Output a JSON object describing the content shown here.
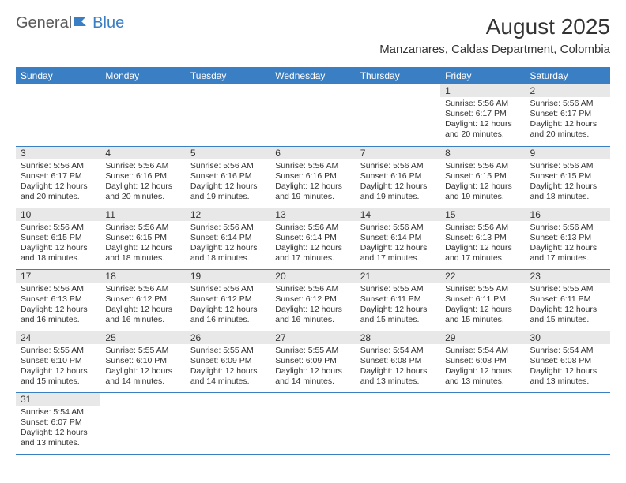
{
  "logo": {
    "text1": "General",
    "text2": "Blue"
  },
  "title": "August 2025",
  "location": "Manzanares, Caldas Department, Colombia",
  "colors": {
    "header_bg": "#3a7fc4",
    "header_text": "#ffffff",
    "daynum_bg": "#e8e8e8",
    "row_border": "#3a7fc4",
    "text": "#333333",
    "logo_blue": "#3a7fc4"
  },
  "fonts": {
    "title_size_pt": 21,
    "location_size_pt": 11,
    "header_size_pt": 9,
    "daynum_size_pt": 9,
    "body_size_pt": 8
  },
  "day_headers": [
    "Sunday",
    "Monday",
    "Tuesday",
    "Wednesday",
    "Thursday",
    "Friday",
    "Saturday"
  ],
  "first_day_col": 5,
  "days": [
    {
      "n": 1,
      "sunrise": "5:56 AM",
      "sunset": "6:17 PM",
      "daylight": "12 hours and 20 minutes."
    },
    {
      "n": 2,
      "sunrise": "5:56 AM",
      "sunset": "6:17 PM",
      "daylight": "12 hours and 20 minutes."
    },
    {
      "n": 3,
      "sunrise": "5:56 AM",
      "sunset": "6:17 PM",
      "daylight": "12 hours and 20 minutes."
    },
    {
      "n": 4,
      "sunrise": "5:56 AM",
      "sunset": "6:16 PM",
      "daylight": "12 hours and 20 minutes."
    },
    {
      "n": 5,
      "sunrise": "5:56 AM",
      "sunset": "6:16 PM",
      "daylight": "12 hours and 19 minutes."
    },
    {
      "n": 6,
      "sunrise": "5:56 AM",
      "sunset": "6:16 PM",
      "daylight": "12 hours and 19 minutes."
    },
    {
      "n": 7,
      "sunrise": "5:56 AM",
      "sunset": "6:16 PM",
      "daylight": "12 hours and 19 minutes."
    },
    {
      "n": 8,
      "sunrise": "5:56 AM",
      "sunset": "6:15 PM",
      "daylight": "12 hours and 19 minutes."
    },
    {
      "n": 9,
      "sunrise": "5:56 AM",
      "sunset": "6:15 PM",
      "daylight": "12 hours and 18 minutes."
    },
    {
      "n": 10,
      "sunrise": "5:56 AM",
      "sunset": "6:15 PM",
      "daylight": "12 hours and 18 minutes."
    },
    {
      "n": 11,
      "sunrise": "5:56 AM",
      "sunset": "6:15 PM",
      "daylight": "12 hours and 18 minutes."
    },
    {
      "n": 12,
      "sunrise": "5:56 AM",
      "sunset": "6:14 PM",
      "daylight": "12 hours and 18 minutes."
    },
    {
      "n": 13,
      "sunrise": "5:56 AM",
      "sunset": "6:14 PM",
      "daylight": "12 hours and 17 minutes."
    },
    {
      "n": 14,
      "sunrise": "5:56 AM",
      "sunset": "6:14 PM",
      "daylight": "12 hours and 17 minutes."
    },
    {
      "n": 15,
      "sunrise": "5:56 AM",
      "sunset": "6:13 PM",
      "daylight": "12 hours and 17 minutes."
    },
    {
      "n": 16,
      "sunrise": "5:56 AM",
      "sunset": "6:13 PM",
      "daylight": "12 hours and 17 minutes."
    },
    {
      "n": 17,
      "sunrise": "5:56 AM",
      "sunset": "6:13 PM",
      "daylight": "12 hours and 16 minutes."
    },
    {
      "n": 18,
      "sunrise": "5:56 AM",
      "sunset": "6:12 PM",
      "daylight": "12 hours and 16 minutes."
    },
    {
      "n": 19,
      "sunrise": "5:56 AM",
      "sunset": "6:12 PM",
      "daylight": "12 hours and 16 minutes."
    },
    {
      "n": 20,
      "sunrise": "5:56 AM",
      "sunset": "6:12 PM",
      "daylight": "12 hours and 16 minutes."
    },
    {
      "n": 21,
      "sunrise": "5:55 AM",
      "sunset": "6:11 PM",
      "daylight": "12 hours and 15 minutes."
    },
    {
      "n": 22,
      "sunrise": "5:55 AM",
      "sunset": "6:11 PM",
      "daylight": "12 hours and 15 minutes."
    },
    {
      "n": 23,
      "sunrise": "5:55 AM",
      "sunset": "6:11 PM",
      "daylight": "12 hours and 15 minutes."
    },
    {
      "n": 24,
      "sunrise": "5:55 AM",
      "sunset": "6:10 PM",
      "daylight": "12 hours and 15 minutes."
    },
    {
      "n": 25,
      "sunrise": "5:55 AM",
      "sunset": "6:10 PM",
      "daylight": "12 hours and 14 minutes."
    },
    {
      "n": 26,
      "sunrise": "5:55 AM",
      "sunset": "6:09 PM",
      "daylight": "12 hours and 14 minutes."
    },
    {
      "n": 27,
      "sunrise": "5:55 AM",
      "sunset": "6:09 PM",
      "daylight": "12 hours and 14 minutes."
    },
    {
      "n": 28,
      "sunrise": "5:54 AM",
      "sunset": "6:08 PM",
      "daylight": "12 hours and 13 minutes."
    },
    {
      "n": 29,
      "sunrise": "5:54 AM",
      "sunset": "6:08 PM",
      "daylight": "12 hours and 13 minutes."
    },
    {
      "n": 30,
      "sunrise": "5:54 AM",
      "sunset": "6:08 PM",
      "daylight": "12 hours and 13 minutes."
    },
    {
      "n": 31,
      "sunrise": "5:54 AM",
      "sunset": "6:07 PM",
      "daylight": "12 hours and 13 minutes."
    }
  ],
  "labels": {
    "sunrise_prefix": "Sunrise: ",
    "sunset_prefix": "Sunset: ",
    "daylight_prefix": "Daylight: "
  }
}
